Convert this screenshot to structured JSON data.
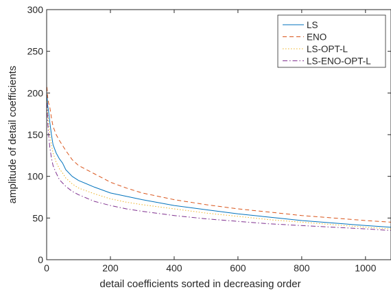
{
  "chart_data": {
    "type": "line",
    "title": "",
    "xlabel": "detail coefficients sorted in decreasing order",
    "ylabel": "amplitude of detail coefficients",
    "xlim": [
      0,
      1080
    ],
    "ylim": [
      0,
      300
    ],
    "xticks": [
      0,
      200,
      400,
      600,
      800,
      1000
    ],
    "yticks": [
      0,
      50,
      100,
      150,
      200,
      250,
      300
    ],
    "grid": false,
    "legend_position": "top-right",
    "series": [
      {
        "name": "LS",
        "color": "#0072BD",
        "dash": "solid",
        "x": [
          1,
          3,
          6,
          10,
          15,
          20,
          30,
          40,
          50,
          60,
          80,
          100,
          150,
          200,
          250,
          300,
          400,
          500,
          600,
          700,
          800,
          900,
          1000,
          1080
        ],
        "y": [
          198,
          186,
          178,
          165,
          150,
          138,
          128,
          121,
          116,
          108,
          100,
          95,
          87,
          80,
          76,
          72,
          65,
          60,
          55,
          51,
          47,
          44,
          41,
          39
        ]
      },
      {
        "name": "ENO",
        "color": "#D95319",
        "dash": "dashed",
        "x": [
          1,
          3,
          6,
          10,
          15,
          20,
          30,
          40,
          50,
          60,
          80,
          100,
          150,
          200,
          250,
          300,
          400,
          500,
          600,
          700,
          800,
          900,
          1000,
          1080
        ],
        "y": [
          207,
          196,
          188,
          183,
          170,
          160,
          150,
          143,
          137,
          131,
          120,
          113,
          103,
          93,
          86,
          80,
          72,
          66,
          61,
          57,
          53,
          50,
          47,
          45
        ]
      },
      {
        "name": "LS-OPT-L",
        "color": "#EDB120",
        "dash": "dotted",
        "x": [
          1,
          3,
          6,
          10,
          15,
          20,
          30,
          40,
          50,
          60,
          80,
          100,
          150,
          200,
          250,
          300,
          400,
          500,
          600,
          700,
          800,
          900,
          1000,
          1080
        ],
        "y": [
          190,
          178,
          165,
          150,
          138,
          128,
          117,
          109,
          104,
          98,
          91,
          86,
          79,
          73,
          69,
          66,
          61,
          56,
          52,
          48,
          45,
          42,
          39,
          37
        ]
      },
      {
        "name": "LS-ENO-OPT-L",
        "color": "#7E2F8E",
        "dash": "dashdot",
        "x": [
          1,
          3,
          6,
          10,
          15,
          20,
          30,
          40,
          50,
          60,
          80,
          100,
          150,
          200,
          250,
          300,
          400,
          500,
          600,
          700,
          800,
          900,
          1000,
          1080
        ],
        "y": [
          188,
          168,
          150,
          135,
          122,
          113,
          104,
          96,
          92,
          88,
          82,
          78,
          70,
          65,
          61,
          58,
          53,
          49,
          46,
          43,
          41,
          39,
          37,
          35
        ]
      }
    ]
  }
}
